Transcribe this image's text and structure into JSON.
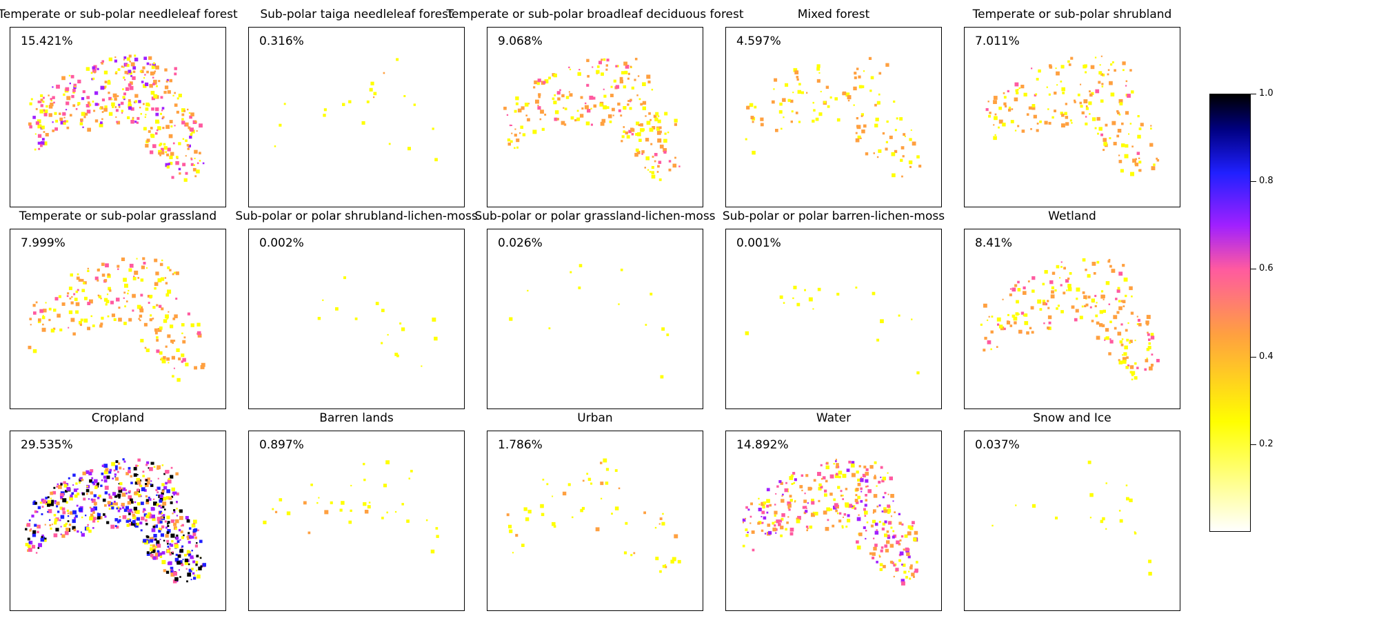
{
  "figure": {
    "colormap": "gnuplot2_r",
    "colors": {
      "low": "#ffffff",
      "yellow": "#ffff00",
      "orange": "#ffa040",
      "pink": "#ff5aa0",
      "purple": "#a020ff",
      "blue": "#2020ff",
      "dark": "#000000"
    }
  },
  "colorbar": {
    "range": [
      0.0,
      1.0
    ],
    "ticks": [
      {
        "value": 1.0,
        "label": "1.0"
      },
      {
        "value": 0.8,
        "label": "0.8"
      },
      {
        "value": 0.6,
        "label": "0.6"
      },
      {
        "value": 0.4,
        "label": "0.4"
      },
      {
        "value": 0.2,
        "label": "0.2"
      }
    ]
  },
  "chart_data": [
    {
      "type": "heatmap",
      "title": "Temperate or sub-polar needleleaf forest",
      "annotation": "15.421%",
      "percent": 15.421
    },
    {
      "type": "heatmap",
      "title": "Sub-polar taiga needleleaf forest",
      "annotation": "0.316%",
      "percent": 0.316
    },
    {
      "type": "heatmap",
      "title": "Temperate or sub-polar broadleaf deciduous forest",
      "annotation": "9.068%",
      "percent": 9.068
    },
    {
      "type": "heatmap",
      "title": "Mixed forest",
      "annotation": "4.597%",
      "percent": 4.597
    },
    {
      "type": "heatmap",
      "title": "Temperate or sub-polar shrubland",
      "annotation": "7.011%",
      "percent": 7.011
    },
    {
      "type": "heatmap",
      "title": "Temperate or sub-polar grassland",
      "annotation": "7.999%",
      "percent": 7.999
    },
    {
      "type": "heatmap",
      "title": "Sub-polar or polar shrubland-lichen-moss",
      "annotation": "0.002%",
      "percent": 0.002
    },
    {
      "type": "heatmap",
      "title": "Sub-polar or polar grassland-lichen-moss",
      "annotation": "0.026%",
      "percent": 0.026
    },
    {
      "type": "heatmap",
      "title": "Sub-polar or polar barren-lichen-moss",
      "annotation": "0.001%",
      "percent": 0.001
    },
    {
      "type": "heatmap",
      "title": "Wetland",
      "annotation": "8.41%",
      "percent": 8.41
    },
    {
      "type": "heatmap",
      "title": "Cropland",
      "annotation": "29.535%",
      "percent": 29.535
    },
    {
      "type": "heatmap",
      "title": "Barren lands",
      "annotation": "0.897%",
      "percent": 0.897
    },
    {
      "type": "heatmap",
      "title": "Urban",
      "annotation": "1.786%",
      "percent": 1.786
    },
    {
      "type": "heatmap",
      "title": "Water",
      "annotation": "14.892%",
      "percent": 14.892
    },
    {
      "type": "heatmap",
      "title": "Snow and Ice",
      "annotation": "0.037%",
      "percent": 0.037
    }
  ]
}
